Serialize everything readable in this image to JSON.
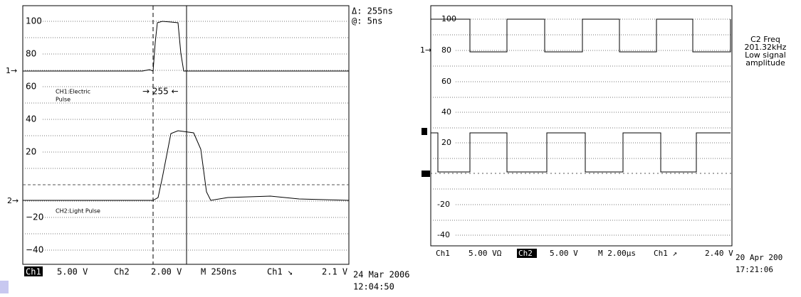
{
  "left": {
    "delta": "Δ: 255ns",
    "at": "@: 5ns",
    "yticks": [
      "100",
      "80",
      "60",
      "40",
      "20",
      "−20",
      "−40"
    ],
    "markers": [
      "1→",
      "2→"
    ],
    "annotations": [
      "CH1:Electric",
      "Pulse",
      "CH2:Light Pulse"
    ],
    "gap": "→  255  ←",
    "status": [
      "Ch1",
      "5.00 V",
      "Ch2",
      "2.00 V",
      "M 250ns",
      "Ch1 ↘",
      "2.1 V"
    ],
    "timestamp": [
      "24 Mar 2006",
      "12:04:50"
    ]
  },
  "right": {
    "yticks": [
      "100",
      "80",
      "60",
      "40",
      "20",
      "-20",
      "-40"
    ],
    "marker": "1→",
    "readout": [
      "C2 Freq",
      "201.32kHz",
      "Low signal",
      "amplitude"
    ],
    "status": [
      "Ch1",
      "5.00 VΩ",
      "Ch2",
      "5.00 V",
      "M 2.00µs",
      "Ch1 ↗",
      "2.40 V"
    ],
    "timestamp": [
      "20 Apr 200",
      "17:21:06"
    ]
  }
}
